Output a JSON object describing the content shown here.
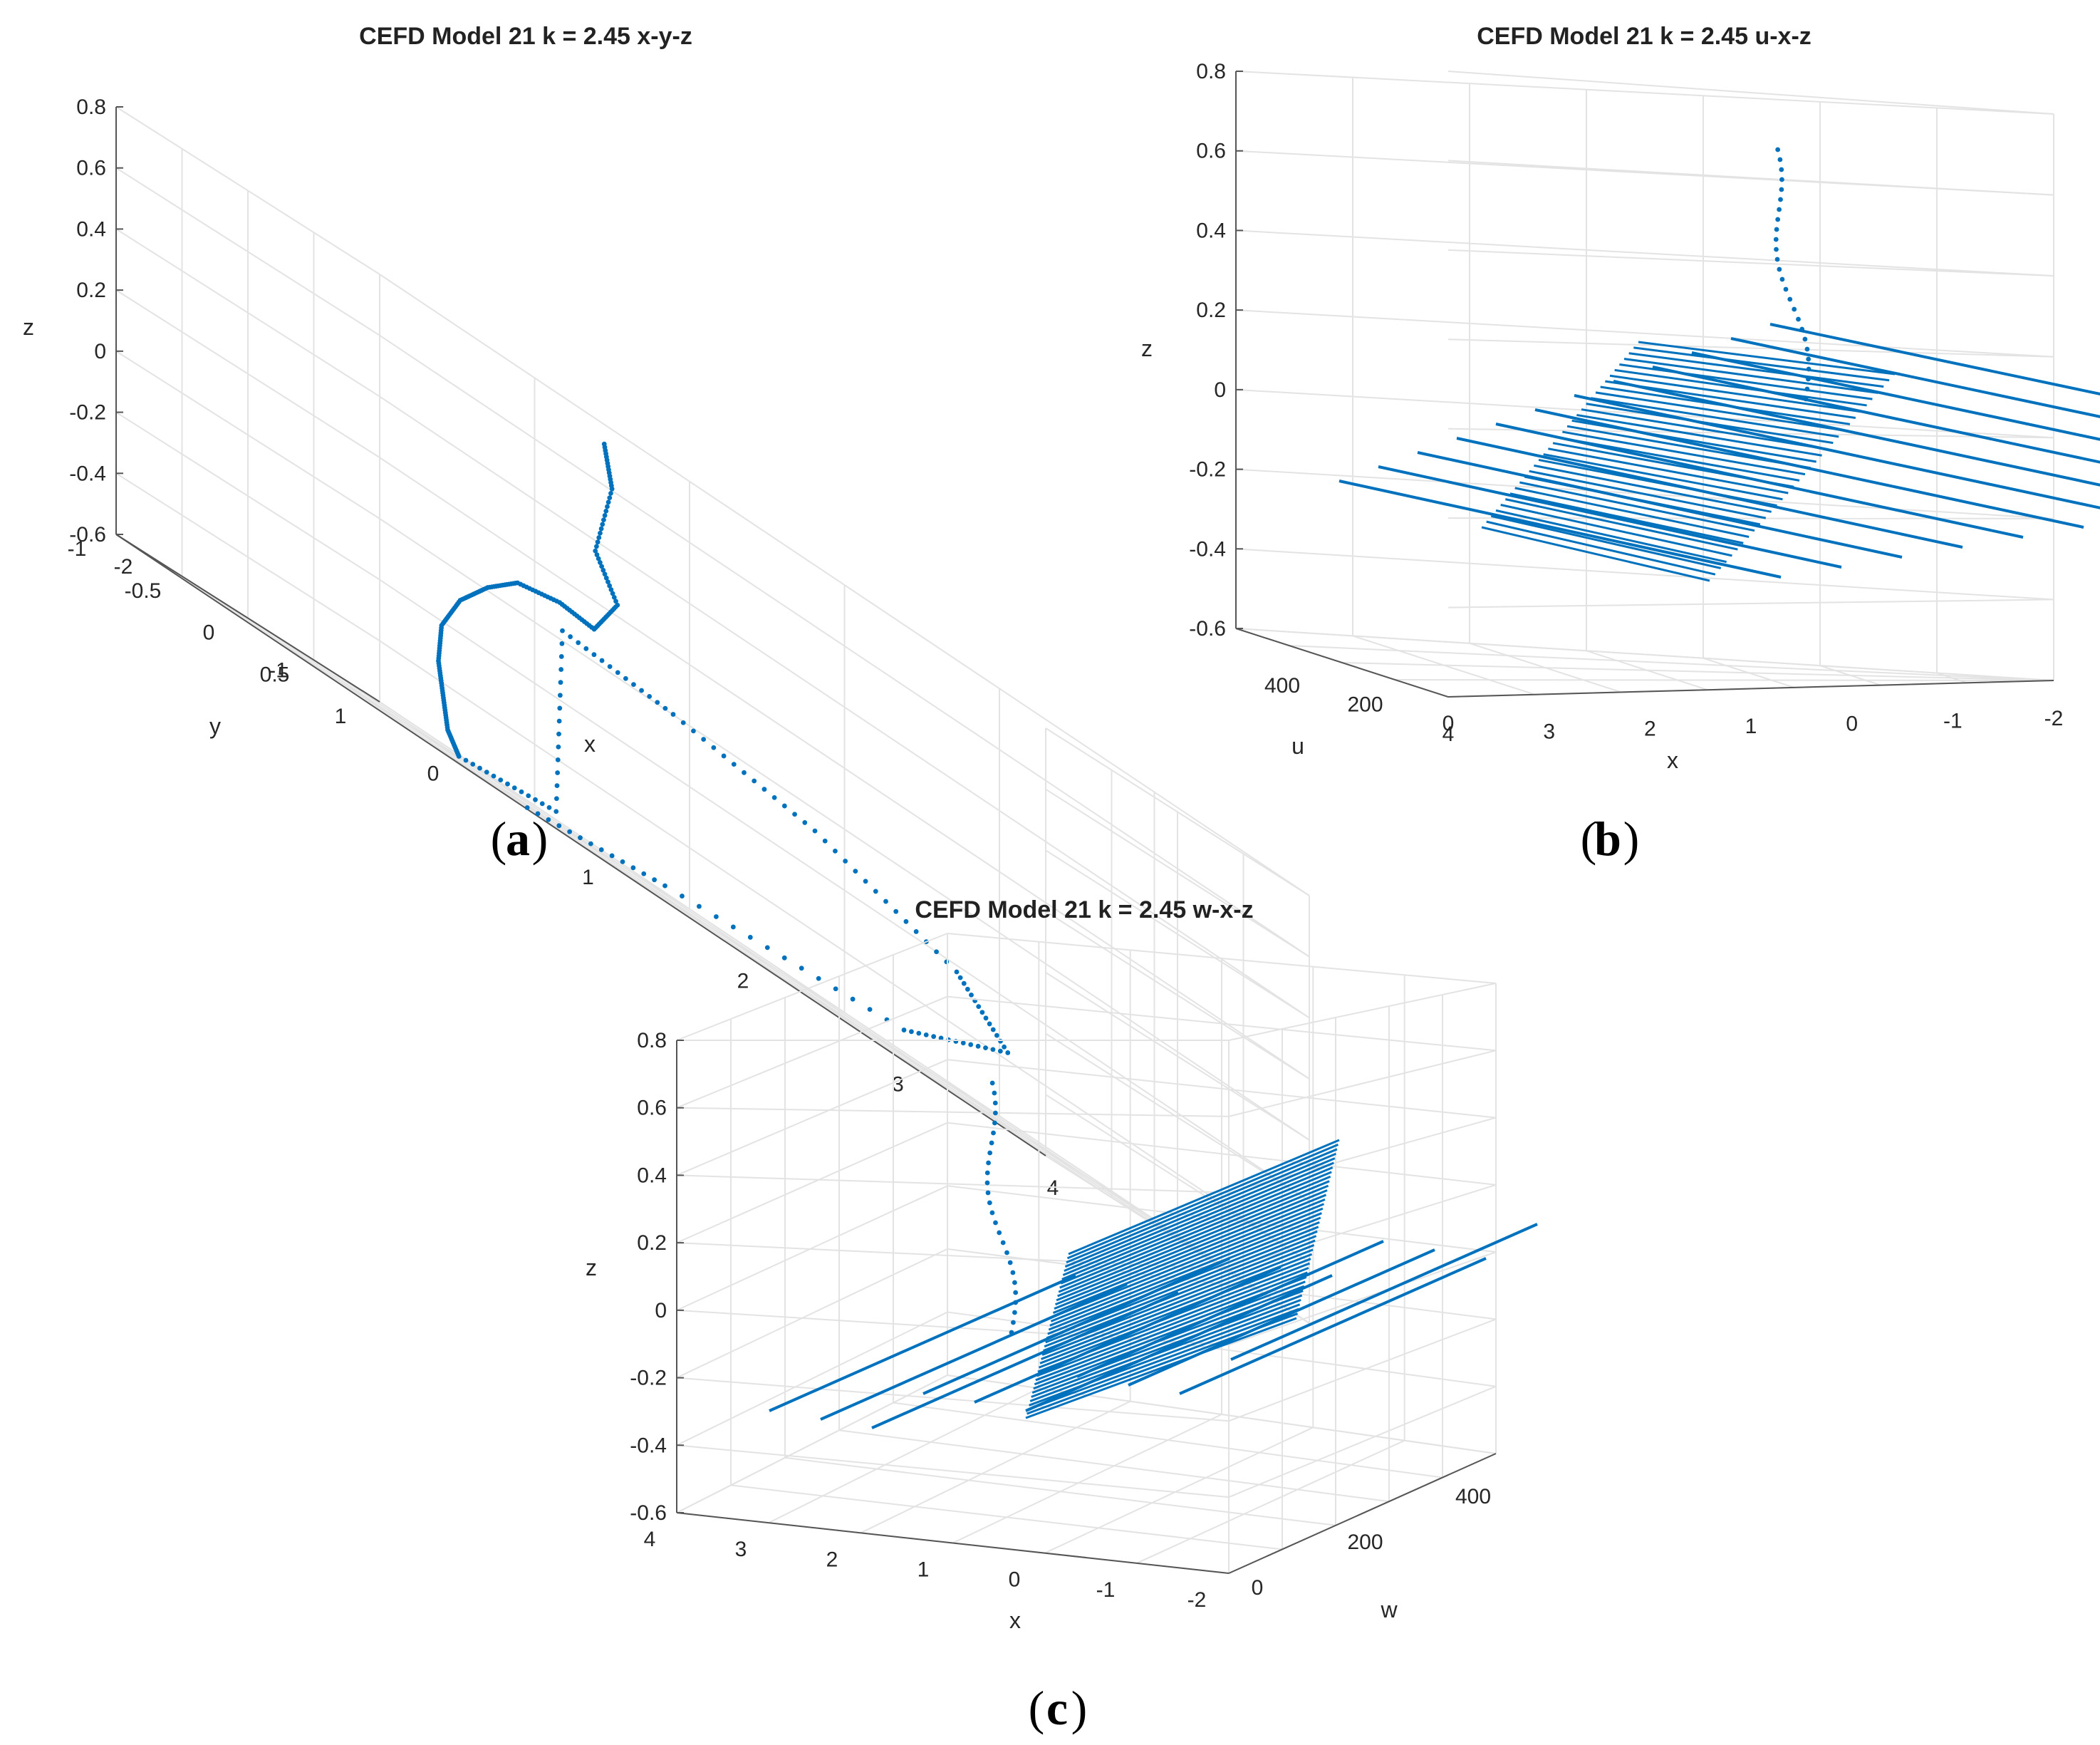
{
  "chart_data": [
    {
      "type": "scatter",
      "panel": "a",
      "caption_letter": "a",
      "title": "CEFD Model 21 k = 2.45 x-y-z",
      "axes": {
        "x": {
          "label": "x",
          "range": [
            -2,
            4
          ],
          "ticks": [
            "-2",
            "-1",
            "0",
            "1",
            "2",
            "3",
            "4"
          ]
        },
        "y": {
          "label": "y",
          "range": [
            -1,
            1
          ],
          "ticks": [
            "-1",
            "-0.5",
            "0",
            "0.5",
            "1"
          ]
        },
        "z": {
          "label": "z",
          "range": [
            -0.6,
            0.8
          ],
          "ticks": [
            "-0.6",
            "-0.4",
            "-0.2",
            "0",
            "0.2",
            "0.4",
            "0.6",
            "0.8"
          ]
        }
      },
      "grid": true,
      "marker_color": "#0072BD",
      "trajectory": [
        [
          0.3,
          0.0,
          0.75
        ],
        [
          0.35,
          0.0,
          0.62
        ],
        [
          0.2,
          0.05,
          0.38
        ],
        [
          0.3,
          0.1,
          0.25
        ],
        [
          0.15,
          0.1,
          0.12
        ],
        [
          -0.2,
          0.25,
          0.13
        ],
        [
          -0.6,
          0.4,
          0.1
        ],
        [
          -0.75,
          0.35,
          0.02
        ],
        [
          -0.8,
          0.2,
          -0.08
        ],
        [
          -0.75,
          0.0,
          -0.2
        ],
        [
          -0.6,
          -0.2,
          -0.32
        ],
        [
          -0.4,
          -0.4,
          -0.42
        ],
        [
          -0.2,
          -0.6,
          -0.52
        ],
        [
          0.0,
          -0.75,
          -0.58
        ],
        [
          0.5,
          -0.6,
          -0.55
        ],
        [
          0.2,
          -0.2,
          0.05
        ],
        [
          1.0,
          -0.3,
          0.02
        ],
        [
          2.0,
          -0.4,
          -0.05
        ],
        [
          3.0,
          -0.5,
          -0.2
        ],
        [
          3.5,
          -0.7,
          -0.35
        ],
        [
          3.0,
          -0.9,
          -0.5
        ],
        [
          1.5,
          -0.95,
          -0.55
        ],
        [
          0.5,
          -0.9,
          -0.6
        ]
      ]
    },
    {
      "type": "scatter",
      "panel": "b",
      "caption_letter": "b",
      "title": "CEFD Model 21 k = 2.45 u-x-z",
      "axes": {
        "u": {
          "label": "u",
          "range": [
            0,
            500
          ],
          "ticks": [
            "400",
            "200",
            "0"
          ]
        },
        "x": {
          "label": "x",
          "range": [
            -2,
            4
          ],
          "ticks": [
            "4",
            "3",
            "2",
            "1",
            "0",
            "-1",
            "-2"
          ]
        },
        "z": {
          "label": "z",
          "range": [
            -0.6,
            0.8
          ],
          "ticks": [
            "-0.6",
            "-0.4",
            "-0.2",
            "0",
            "0.2",
            "0.4",
            "0.6",
            "0.8"
          ]
        }
      },
      "grid": true,
      "marker_color": "#0072BD"
    },
    {
      "type": "scatter",
      "panel": "c",
      "caption_letter": "c",
      "title": "CEFD Model 21 k = 2.45 w-x-z",
      "axes": {
        "x": {
          "label": "x",
          "range": [
            -2,
            4
          ],
          "ticks": [
            "4",
            "3",
            "2",
            "1",
            "0",
            "-1",
            "-2"
          ]
        },
        "w": {
          "label": "w",
          "range": [
            0,
            500
          ],
          "ticks": [
            "0",
            "200",
            "400"
          ]
        },
        "z": {
          "label": "z",
          "range": [
            -0.6,
            0.8
          ],
          "ticks": [
            "-0.6",
            "-0.4",
            "-0.2",
            "0",
            "0.2",
            "0.4",
            "0.6",
            "0.8"
          ]
        }
      },
      "grid": true,
      "marker_color": "#0072BD"
    }
  ]
}
